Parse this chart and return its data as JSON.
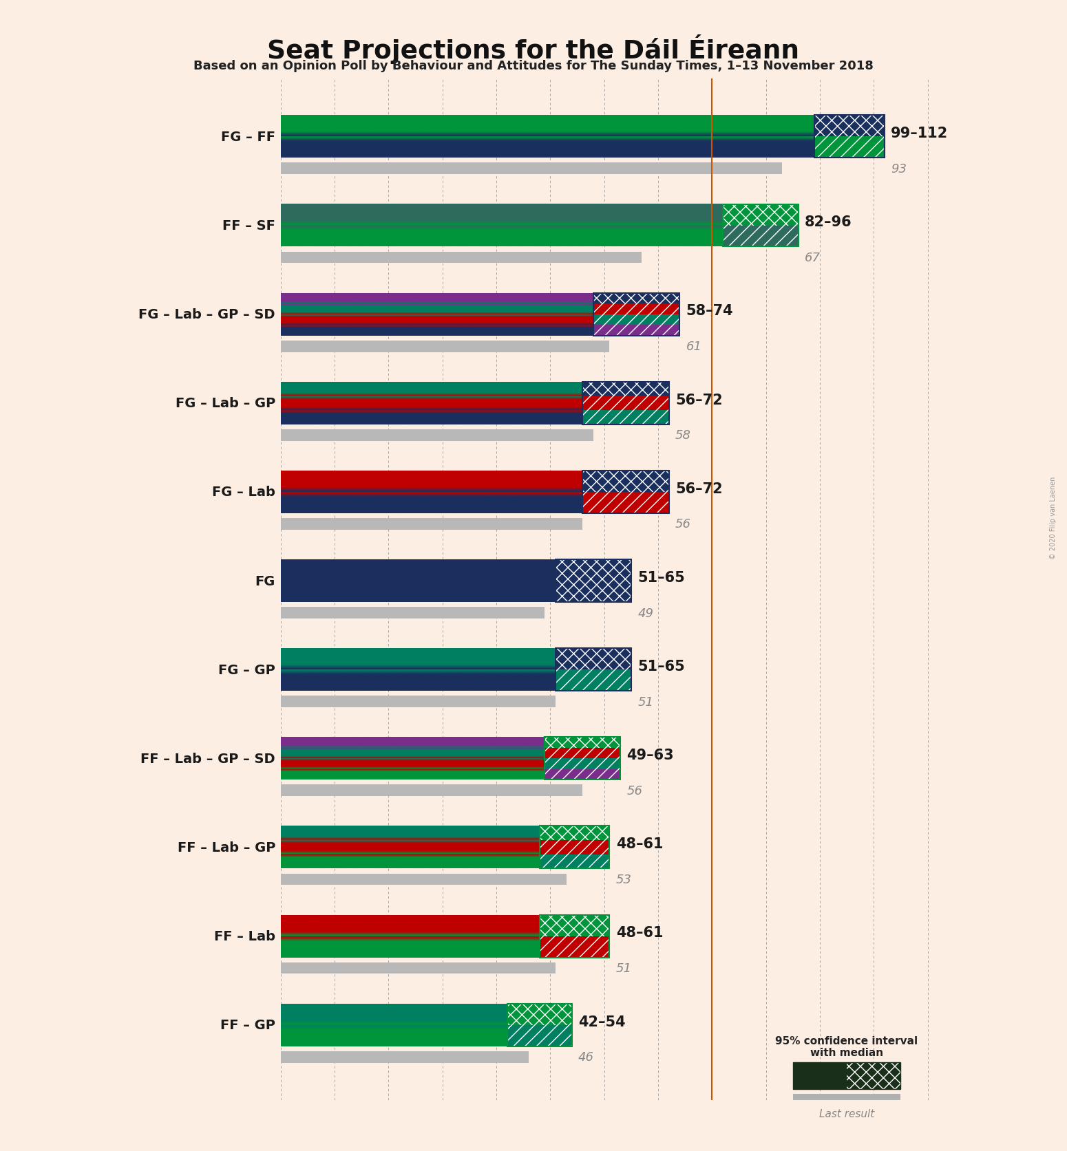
{
  "title": "Seat Projections for the Dáil Éireann",
  "subtitle": "Based on an Opinion Poll by Behaviour and Attitudes for The Sunday Times, 1–13 November 2018",
  "copyright": "© 2020 Filip van Laenen",
  "background_color": "#fdeee4",
  "majority_line": 80,
  "x_max": 120,
  "coalitions": [
    {
      "label": "FG – FF",
      "range_label": "99–112",
      "median": 93,
      "ci_low": 99,
      "ci_high": 112,
      "last_result": 93,
      "parties": [
        "FG",
        "FF"
      ],
      "colors": [
        "#1a2f5e",
        "#00953b"
      ],
      "ci_colors": [
        "#1a2f5e",
        "#00953b"
      ],
      "hatch_styles": [
        "xx",
        "//"
      ]
    },
    {
      "label": "FF – SF",
      "range_label": "82–96",
      "median": 67,
      "ci_low": 82,
      "ci_high": 96,
      "last_result": 67,
      "parties": [
        "FF",
        "SF"
      ],
      "colors": [
        "#00953b",
        "#2e6b5e"
      ],
      "ci_colors": [
        "#00953b",
        "#2e6b5e"
      ],
      "hatch_styles": [
        "xx",
        "//"
      ]
    },
    {
      "label": "FG – Lab – GP – SD",
      "range_label": "58–74",
      "median": 61,
      "ci_low": 58,
      "ci_high": 74,
      "last_result": 61,
      "parties": [
        "FG",
        "Lab",
        "GP",
        "SD"
      ],
      "colors": [
        "#1a2f5e",
        "#c00000",
        "#008060",
        "#7b2d8b"
      ],
      "ci_colors": [
        "#1a2f5e",
        "#c00000",
        "#008060",
        "#7b2d8b"
      ],
      "hatch_styles": [
        "xx",
        "//",
        "//",
        "//"
      ]
    },
    {
      "label": "FG – Lab – GP",
      "range_label": "56–72",
      "median": 58,
      "ci_low": 56,
      "ci_high": 72,
      "last_result": 58,
      "parties": [
        "FG",
        "Lab",
        "GP"
      ],
      "colors": [
        "#1a2f5e",
        "#c00000",
        "#008060"
      ],
      "ci_colors": [
        "#1a2f5e",
        "#c00000",
        "#008060"
      ],
      "hatch_styles": [
        "xx",
        "//",
        "//"
      ]
    },
    {
      "label": "FG – Lab",
      "range_label": "56–72",
      "median": 56,
      "ci_low": 56,
      "ci_high": 72,
      "last_result": 56,
      "parties": [
        "FG",
        "Lab"
      ],
      "colors": [
        "#1a2f5e",
        "#c00000"
      ],
      "ci_colors": [
        "#1a2f5e",
        "#c00000"
      ],
      "hatch_styles": [
        "xx",
        "//"
      ]
    },
    {
      "label": "FG",
      "range_label": "51–65",
      "median": 49,
      "ci_low": 51,
      "ci_high": 65,
      "last_result": 49,
      "parties": [
        "FG"
      ],
      "colors": [
        "#1a2f5e"
      ],
      "ci_colors": [
        "#1a2f5e"
      ],
      "hatch_styles": [
        "xx"
      ]
    },
    {
      "label": "FG – GP",
      "range_label": "51–65",
      "median": 51,
      "ci_low": 51,
      "ci_high": 65,
      "last_result": 51,
      "parties": [
        "FG",
        "GP"
      ],
      "colors": [
        "#1a2f5e",
        "#008060"
      ],
      "ci_colors": [
        "#1a2f5e",
        "#008060"
      ],
      "hatch_styles": [
        "xx",
        "//"
      ]
    },
    {
      "label": "FF – Lab – GP – SD",
      "range_label": "49–63",
      "median": 56,
      "ci_low": 49,
      "ci_high": 63,
      "last_result": 56,
      "parties": [
        "FF",
        "Lab",
        "GP",
        "SD"
      ],
      "colors": [
        "#00953b",
        "#c00000",
        "#008060",
        "#7b2d8b"
      ],
      "ci_colors": [
        "#00953b",
        "#c00000",
        "#008060",
        "#7b2d8b"
      ],
      "hatch_styles": [
        "xx",
        "//",
        "//",
        "//"
      ]
    },
    {
      "label": "FF – Lab – GP",
      "range_label": "48–61",
      "median": 53,
      "ci_low": 48,
      "ci_high": 61,
      "last_result": 53,
      "parties": [
        "FF",
        "Lab",
        "GP"
      ],
      "colors": [
        "#00953b",
        "#c00000",
        "#008060"
      ],
      "ci_colors": [
        "#00953b",
        "#c00000",
        "#008060"
      ],
      "hatch_styles": [
        "xx",
        "//",
        "//"
      ]
    },
    {
      "label": "FF – Lab",
      "range_label": "48–61",
      "median": 51,
      "ci_low": 48,
      "ci_high": 61,
      "last_result": 51,
      "parties": [
        "FF",
        "Lab"
      ],
      "colors": [
        "#00953b",
        "#c00000"
      ],
      "ci_colors": [
        "#00953b",
        "#c00000"
      ],
      "hatch_styles": [
        "xx",
        "//"
      ]
    },
    {
      "label": "FF – GP",
      "range_label": "42–54",
      "median": 46,
      "ci_low": 42,
      "ci_high": 54,
      "last_result": 46,
      "parties": [
        "FF",
        "GP"
      ],
      "colors": [
        "#00953b",
        "#008060"
      ],
      "ci_colors": [
        "#00953b",
        "#008060"
      ],
      "hatch_styles": [
        "xx",
        "//"
      ]
    }
  ]
}
